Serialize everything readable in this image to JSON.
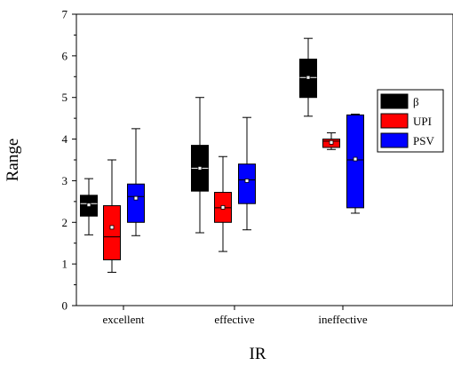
{
  "chart_data": {
    "type": "box",
    "xlabel": "IR",
    "ylabel": "Range",
    "ylim": [
      0,
      7
    ],
    "yticks": [
      0,
      1,
      2,
      3,
      4,
      5,
      6,
      7
    ],
    "grid": false,
    "legend_position": "right",
    "categories": [
      "excellent",
      "effective",
      "ineffective"
    ],
    "series": [
      {
        "name": "β",
        "color": "#000000",
        "median_color": "#ffffff",
        "boxes": [
          {
            "min": 1.7,
            "q1": 2.15,
            "median": 2.45,
            "q3": 2.65,
            "max": 3.05,
            "mean": 2.42
          },
          {
            "min": 1.75,
            "q1": 2.75,
            "median": 3.3,
            "q3": 3.85,
            "max": 5.0,
            "mean": 3.3
          },
          {
            "min": 4.55,
            "q1": 5.0,
            "median": 5.48,
            "q3": 5.92,
            "max": 6.42,
            "mean": 5.48
          }
        ]
      },
      {
        "name": "UPI",
        "color": "#ff0000",
        "median_color": "#000000",
        "boxes": [
          {
            "min": 0.8,
            "q1": 1.1,
            "median": 1.65,
            "q3": 2.4,
            "max": 3.5,
            "mean": 1.88
          },
          {
            "min": 1.3,
            "q1": 2.0,
            "median": 2.35,
            "q3": 2.72,
            "max": 3.58,
            "mean": 2.36
          },
          {
            "min": 3.75,
            "q1": 3.8,
            "median": 3.95,
            "q3": 4.0,
            "max": 4.15,
            "mean": 3.92
          }
        ]
      },
      {
        "name": "PSV",
        "color": "#0000ff",
        "median_color": "#000000",
        "boxes": [
          {
            "min": 1.68,
            "q1": 2.0,
            "median": 2.62,
            "q3": 2.92,
            "max": 4.25,
            "mean": 2.58
          },
          {
            "min": 1.82,
            "q1": 2.45,
            "median": 3.02,
            "q3": 3.4,
            "max": 4.52,
            "mean": 3.0
          },
          {
            "min": 2.22,
            "q1": 2.35,
            "median": 3.5,
            "q3": 4.58,
            "max": 4.6,
            "mean": 3.52
          }
        ]
      }
    ]
  }
}
